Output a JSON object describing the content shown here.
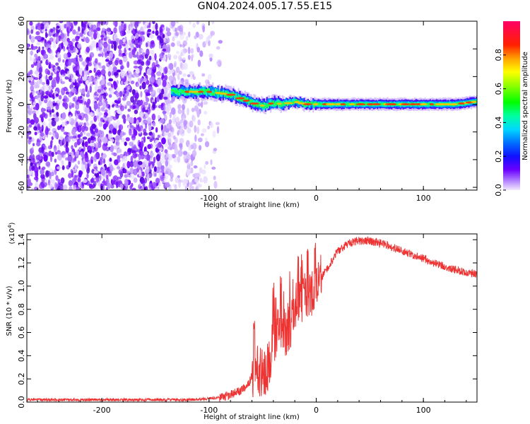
{
  "title": "GN04.2024.005.17.55.E15",
  "colors": {
    "snr_line": "#ee3333",
    "low_amp": "#7a00ff",
    "axis": "#000000"
  },
  "chart_data": [
    {
      "type": "heatmap",
      "xlabel": "Height of straight line (km)",
      "ylabel": "Frequency (Hz)",
      "xlim": [
        -270,
        150
      ],
      "ylim": [
        -62,
        60
      ],
      "xticks": [
        -200,
        -100,
        0,
        100
      ],
      "yticks": [
        -60,
        -40,
        -20,
        0,
        20,
        40,
        60
      ],
      "colorbar": {
        "label": "Normalized spectral amplitude",
        "range": [
          0,
          1
        ],
        "ticks": [
          0.0,
          0.2,
          0.4,
          0.6,
          0.8
        ],
        "tick_labels": [
          "0.0",
          "0.2",
          "0.4",
          "0.6",
          "0.8"
        ]
      },
      "signal_band_center": [
        [
          -135,
          9
        ],
        [
          -120,
          9
        ],
        [
          -100,
          9
        ],
        [
          -90,
          8
        ],
        [
          -80,
          7
        ],
        [
          -70,
          4
        ],
        [
          -60,
          1
        ],
        [
          -50,
          -1
        ],
        [
          -40,
          1
        ],
        [
          -30,
          0
        ],
        [
          -20,
          2
        ],
        [
          -10,
          0
        ],
        [
          0,
          0
        ],
        [
          50,
          0
        ],
        [
          100,
          0
        ],
        [
          130,
          0
        ],
        [
          150,
          2
        ]
      ]
    },
    {
      "type": "line",
      "xlabel": "Height of straight line (km)",
      "ylabel": "SNR (10 * v/v)",
      "y_scale_label": "(x10",
      "y_scale_exp": "4",
      "y_scale_suffix": ")",
      "xlim": [
        -270,
        150
      ],
      "ylim": [
        0,
        1.45
      ],
      "xticks": [
        -200,
        -100,
        0,
        100
      ],
      "yticks": [
        0.0,
        0.2,
        0.4,
        0.6,
        0.8,
        1.0,
        1.2,
        1.4
      ],
      "ytick_labels": [
        "0.0",
        "0.2",
        "0.4",
        "0.6",
        "0.8",
        "1.0",
        "1.2",
        "1.4"
      ],
      "envelope": [
        [
          -270,
          0.02
        ],
        [
          -200,
          0.02
        ],
        [
          -150,
          0.02
        ],
        [
          -120,
          0.02
        ],
        [
          -100,
          0.03
        ],
        [
          -90,
          0.04
        ],
        [
          -80,
          0.06
        ],
        [
          -70,
          0.1
        ],
        [
          -62,
          0.18
        ],
        [
          -57,
          0.28
        ],
        [
          -50,
          0.25
        ],
        [
          -45,
          0.3
        ],
        [
          -40,
          0.55
        ],
        [
          -35,
          0.6
        ],
        [
          -30,
          0.6
        ],
        [
          -25,
          0.65
        ],
        [
          -20,
          0.8
        ],
        [
          -15,
          0.85
        ],
        [
          -10,
          0.9
        ],
        [
          -5,
          0.95
        ],
        [
          0,
          1.0
        ],
        [
          10,
          1.15
        ],
        [
          20,
          1.3
        ],
        [
          30,
          1.37
        ],
        [
          40,
          1.39
        ],
        [
          50,
          1.39
        ],
        [
          60,
          1.37
        ],
        [
          70,
          1.34
        ],
        [
          80,
          1.3
        ],
        [
          90,
          1.27
        ],
        [
          100,
          1.24
        ],
        [
          110,
          1.2
        ],
        [
          120,
          1.17
        ],
        [
          130,
          1.14
        ],
        [
          140,
          1.12
        ],
        [
          150,
          1.1
        ]
      ],
      "spikes": [
        [
          -58,
          0.7
        ],
        [
          -40,
          1.08
        ],
        [
          -38,
          0.95
        ],
        [
          -33,
          1.12
        ],
        [
          -25,
          1.14
        ],
        [
          -17,
          1.3
        ],
        [
          -8,
          1.35
        ],
        [
          -3,
          0.9
        ]
      ]
    }
  ]
}
